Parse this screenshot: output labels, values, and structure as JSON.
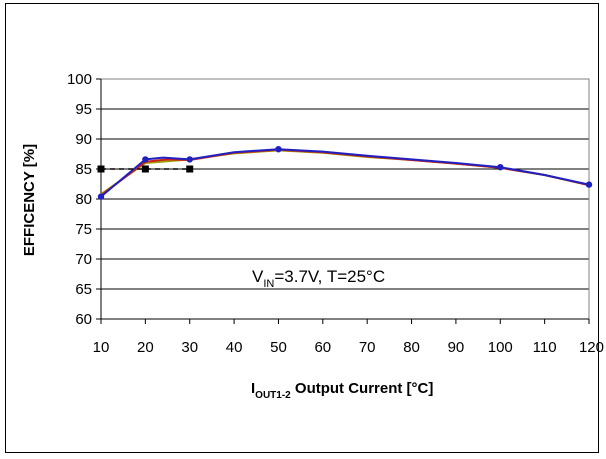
{
  "chart_data": {
    "type": "line",
    "x_ticks": [
      10,
      20,
      30,
      40,
      50,
      60,
      70,
      80,
      90,
      100,
      110,
      120
    ],
    "y_ticks": [
      60,
      65,
      70,
      75,
      80,
      85,
      90,
      95,
      100
    ],
    "xlim": [
      10,
      120
    ],
    "ylim": [
      60,
      100
    ],
    "grid": "horizontal",
    "ylabel": "EFFICENCY [%]",
    "xlabel": {
      "main": "I",
      "sub": "OUT1-2",
      "rest": " Output Current [°C]"
    },
    "annotation": {
      "main": "V",
      "sub": "IN",
      "rest": "=3.7V, T=25°C"
    },
    "series": [
      {
        "color": "#a0a000",
        "marker": "none",
        "dash": "solid",
        "x": [
          10,
          20,
          25,
          30,
          40,
          50,
          60,
          70,
          80,
          90,
          100,
          110,
          120
        ],
        "y": [
          80.8,
          86.0,
          86.3,
          86.6,
          87.6,
          88.1,
          87.7,
          87.0,
          86.5,
          85.9,
          85.2,
          84.0,
          82.3
        ]
      },
      {
        "color": "#cc2020",
        "marker": "none",
        "dash": "solid",
        "x": [
          10,
          20,
          25,
          30,
          40,
          50,
          60,
          70,
          80,
          90,
          100,
          110,
          120
        ],
        "y": [
          80.6,
          86.2,
          86.6,
          86.5,
          87.7,
          88.2,
          87.8,
          87.1,
          86.5,
          85.9,
          85.2,
          84.0,
          82.3
        ]
      },
      {
        "color": "#2020c0",
        "marker": "circle",
        "dash": "solid",
        "x": [
          10,
          20,
          24,
          30,
          40,
          50,
          60,
          70,
          80,
          90,
          100,
          110,
          120
        ],
        "y": [
          80.4,
          86.6,
          86.9,
          86.6,
          87.8,
          88.3,
          87.9,
          87.2,
          86.6,
          86.0,
          85.3,
          84.0,
          82.4
        ]
      },
      {
        "color": "#000000",
        "marker": "square",
        "dash": "dashed",
        "x": [
          10,
          20,
          30
        ],
        "y": [
          85.0,
          85.0,
          85.0
        ]
      }
    ]
  }
}
